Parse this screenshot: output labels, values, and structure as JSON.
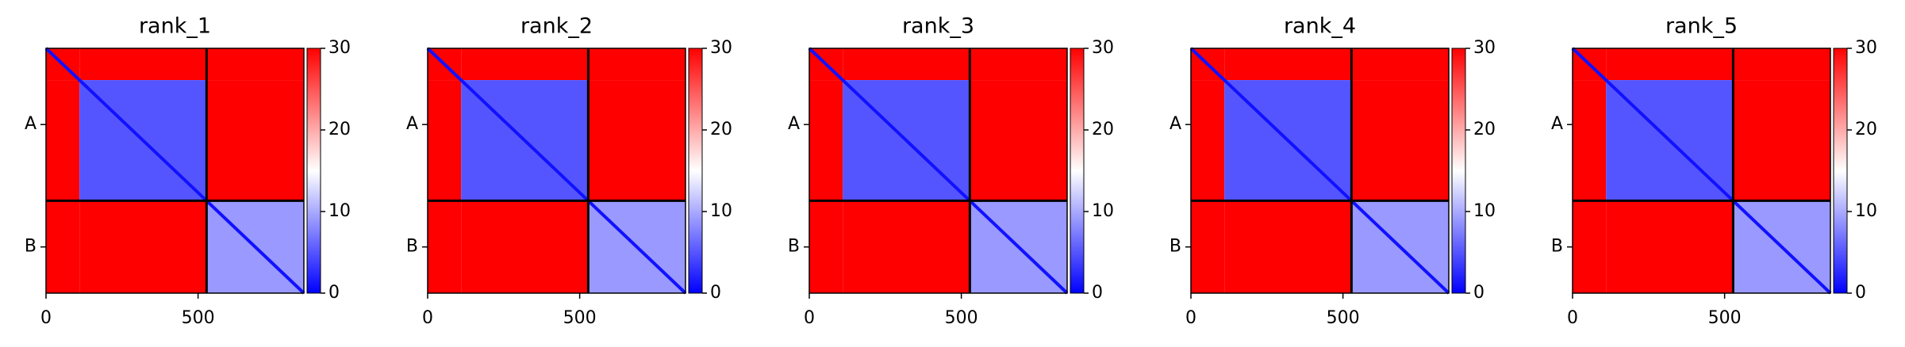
{
  "chart_data": [
    {
      "type": "heatmap",
      "title": "rank_1",
      "xlim": [
        0,
        848
      ],
      "xticks": [
        0,
        500
      ],
      "ylim": [
        0,
        848
      ],
      "yticks": [
        {
          "value": 264,
          "label": "A"
        },
        {
          "value": 688,
          "label": "B"
        }
      ],
      "edges": [
        0,
        110,
        528,
        848
      ],
      "values": [
        [
          30,
          30,
          30
        ],
        [
          30,
          5,
          30
        ],
        [
          30,
          30,
          9
        ]
      ],
      "diagonal": 1,
      "chain_boundaries": [
        528
      ],
      "clim": [
        0,
        30
      ],
      "cticks": [
        0,
        10,
        20,
        30
      ]
    },
    {
      "type": "heatmap",
      "title": "rank_2",
      "xlim": [
        0,
        848
      ],
      "xticks": [
        0,
        500
      ],
      "ylim": [
        0,
        848
      ],
      "yticks": [
        {
          "value": 264,
          "label": "A"
        },
        {
          "value": 688,
          "label": "B"
        }
      ],
      "edges": [
        0,
        110,
        528,
        848
      ],
      "values": [
        [
          30,
          30,
          30
        ],
        [
          30,
          5,
          30
        ],
        [
          30,
          30,
          9
        ]
      ],
      "diagonal": 1,
      "chain_boundaries": [
        528
      ],
      "clim": [
        0,
        30
      ],
      "cticks": [
        0,
        10,
        20,
        30
      ]
    },
    {
      "type": "heatmap",
      "title": "rank_3",
      "xlim": [
        0,
        848
      ],
      "xticks": [
        0,
        500
      ],
      "ylim": [
        0,
        848
      ],
      "yticks": [
        {
          "value": 264,
          "label": "A"
        },
        {
          "value": 688,
          "label": "B"
        }
      ],
      "edges": [
        0,
        110,
        528,
        848
      ],
      "values": [
        [
          30,
          30,
          30
        ],
        [
          30,
          5,
          30
        ],
        [
          30,
          30,
          9
        ]
      ],
      "diagonal": 1,
      "chain_boundaries": [
        528
      ],
      "clim": [
        0,
        30
      ],
      "cticks": [
        0,
        10,
        20,
        30
      ]
    },
    {
      "type": "heatmap",
      "title": "rank_4",
      "xlim": [
        0,
        848
      ],
      "xticks": [
        0,
        500
      ],
      "ylim": [
        0,
        848
      ],
      "yticks": [
        {
          "value": 264,
          "label": "A"
        },
        {
          "value": 688,
          "label": "B"
        }
      ],
      "edges": [
        0,
        110,
        528,
        848
      ],
      "values": [
        [
          30,
          30,
          30
        ],
        [
          30,
          5,
          30
        ],
        [
          30,
          30,
          9
        ]
      ],
      "diagonal": 1,
      "chain_boundaries": [
        528
      ],
      "clim": [
        0,
        30
      ],
      "cticks": [
        0,
        10,
        20,
        30
      ]
    },
    {
      "type": "heatmap",
      "title": "rank_5",
      "xlim": [
        0,
        848
      ],
      "xticks": [
        0,
        500
      ],
      "ylim": [
        0,
        848
      ],
      "yticks": [
        {
          "value": 264,
          "label": "A"
        },
        {
          "value": 688,
          "label": "B"
        }
      ],
      "edges": [
        0,
        110,
        528,
        848
      ],
      "values": [
        [
          30,
          30,
          30
        ],
        [
          30,
          5,
          30
        ],
        [
          30,
          30,
          9
        ]
      ],
      "diagonal": 1,
      "chain_boundaries": [
        528
      ],
      "clim": [
        0,
        30
      ],
      "cticks": [
        0,
        10,
        20,
        30
      ]
    }
  ]
}
